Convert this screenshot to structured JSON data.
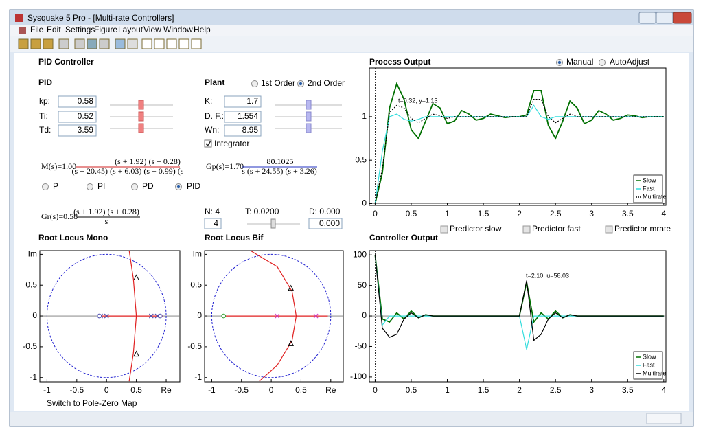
{
  "window": {
    "title": "Sysquake 5 Pro - [Multi-rate Controllers]",
    "menu": [
      "File",
      "Edit",
      "Settings",
      "Figure",
      "Layout",
      "View",
      "Window",
      "Help"
    ]
  },
  "pid_panel": {
    "title": "PID Controller",
    "pid": {
      "title": "PID",
      "fields": [
        {
          "label": "kp:",
          "value": "0.58"
        },
        {
          "label": "Ti:",
          "value": "0.52"
        },
        {
          "label": "Td:",
          "value": "3.59"
        }
      ]
    },
    "plant": {
      "title": "Plant",
      "order_options": [
        "1st Order",
        "2nd Order"
      ],
      "fields": [
        {
          "label": "K:",
          "value": "1.7"
        },
        {
          "label": "D. F.:",
          "value": "1.554"
        },
        {
          "label": "Wn:",
          "value": "8.95"
        }
      ],
      "integrator": "Integrator"
    },
    "m_formula": {
      "lhs": "M(s)=1.00",
      "numerator": "(s + 1.92) (s + 0.28)",
      "denominator": "(s + 20.45) (s + 6.03) (s + 0.99) (s"
    },
    "gp_formula": {
      "lhs": "Gp(s)=1.70",
      "numerator": "80.1025",
      "denominator": "s (s + 24.55) (s + 3.26)"
    },
    "controller_options": [
      "P",
      "PI",
      "PD",
      "PID"
    ],
    "gr_formula": {
      "lhs": "Gr(s)=0.58",
      "numerator": "(s + 1.92) (s + 0.28)",
      "denominator": "s"
    },
    "n_label": "N: 4",
    "n_value": "4",
    "t_label": "T: 0.0200",
    "d_label": "D: 0.000",
    "d_value": "0.000"
  },
  "process_options": [
    "Manual",
    "AutoAdjust"
  ],
  "predictors": [
    "Predictor slow",
    "Predictor fast",
    "Predictor mrate"
  ],
  "switch_link": "Switch to Pole-Zero Map",
  "chart_data": [
    {
      "type": "line",
      "title": "Process Output",
      "annotation": "t=0.32, y=1.13",
      "legend": "lower right",
      "x": [
        0,
        0.1,
        0.2,
        0.3,
        0.4,
        0.5,
        0.6,
        0.7,
        0.8,
        0.9,
        1,
        1.1,
        1.2,
        1.3,
        1.4,
        1.5,
        1.6,
        1.7,
        1.8,
        1.9,
        2,
        2.1,
        2.2,
        2.3,
        2.4,
        2.5,
        2.6,
        2.7,
        2.8,
        2.9,
        3,
        3.1,
        3.2,
        3.3,
        3.4,
        3.5,
        3.6,
        3.7,
        3.8,
        3.9,
        4
      ],
      "series": [
        {
          "name": "Slow",
          "color": "#007000",
          "style": "solid",
          "values": [
            0,
            0.35,
            1.1,
            1.38,
            1.2,
            0.85,
            0.75,
            0.95,
            1.15,
            1.1,
            0.92,
            0.95,
            1.07,
            1.03,
            0.96,
            0.98,
            1.03,
            1.01,
            0.99,
            1,
            1,
            1.02,
            1.3,
            1.3,
            0.9,
            0.75,
            0.95,
            1.18,
            1.1,
            0.92,
            0.96,
            1.07,
            1.03,
            0.96,
            0.98,
            1.02,
            1.01,
            0.99,
            1,
            1,
            1
          ]
        },
        {
          "name": "Fast",
          "color": "#33dddd",
          "style": "solid",
          "values": [
            0,
            0.6,
            1,
            1.03,
            0.97,
            0.95,
            0.97,
            1,
            1,
            1,
            1,
            1,
            1,
            1,
            1,
            1,
            1,
            1,
            1,
            1,
            1,
            1,
            1.13,
            1,
            0.97,
            1,
            1,
            1,
            1,
            1,
            1,
            1,
            1,
            1,
            1,
            1,
            1,
            1,
            1,
            1,
            1
          ]
        },
        {
          "name": "Multirate",
          "color": "#000000",
          "style": "dotted",
          "values": [
            0,
            0.4,
            1.05,
            1.13,
            1.1,
            0.98,
            0.93,
            0.98,
            1.03,
            1.01,
            0.98,
            1,
            1,
            1,
            1,
            1,
            1,
            1,
            1,
            1,
            1,
            1,
            1.2,
            1.2,
            1,
            0.93,
            0.98,
            1.03,
            1,
            1,
            1,
            1,
            1,
            1,
            1,
            1,
            1,
            1,
            1,
            1,
            1
          ]
        }
      ],
      "xlim": [
        -0.08,
        4.03
      ],
      "ylim": [
        -0.02,
        1.56
      ],
      "xticks": [
        0,
        0.5,
        1,
        1.5,
        2,
        2.5,
        3,
        3.5,
        4
      ],
      "yticks": [
        0,
        0.5,
        1
      ]
    },
    {
      "type": "line",
      "title": "Controller Output",
      "annotation": "t=2.10, u=58.03",
      "legend": "lower right",
      "x": [
        0,
        0.1,
        0.2,
        0.3,
        0.4,
        0.5,
        0.6,
        0.7,
        0.8,
        0.9,
        1,
        1.1,
        1.2,
        1.3,
        1.4,
        1.5,
        1.6,
        1.7,
        1.8,
        1.9,
        2,
        2.1,
        2.2,
        2.3,
        2.4,
        2.5,
        2.6,
        2.7,
        2.8,
        2.9,
        3,
        3.1,
        3.2,
        3.3,
        3.4,
        3.5,
        3.6,
        3.7,
        3.8,
        3.9,
        4
      ],
      "series": [
        {
          "name": "Slow",
          "color": "#007000",
          "style": "solid",
          "values": [
            100,
            -5,
            -10,
            5,
            -5,
            8,
            -3,
            2,
            0,
            0,
            0,
            0,
            0,
            0,
            0,
            0,
            0,
            0,
            0,
            0,
            0,
            55,
            -10,
            5,
            -5,
            8,
            -3,
            2,
            0,
            0,
            0,
            0,
            0,
            0,
            0,
            0,
            0,
            0,
            0,
            0,
            0
          ]
        },
        {
          "name": "Fast",
          "color": "#33dddd",
          "style": "solid",
          "values": [
            100,
            -15,
            0,
            0,
            0,
            0,
            0,
            0,
            0,
            0,
            0,
            0,
            0,
            0,
            0,
            0,
            0,
            0,
            0,
            0,
            0,
            -55,
            0,
            0,
            0,
            0,
            0,
            0,
            0,
            0,
            0,
            0,
            0,
            0,
            0,
            0,
            0,
            0,
            0,
            0,
            0
          ]
        },
        {
          "name": "Multirate",
          "color": "#000000",
          "style": "solid",
          "values": [
            100,
            -20,
            -35,
            -30,
            -5,
            5,
            -3,
            2,
            0,
            0,
            0,
            0,
            0,
            0,
            0,
            0,
            0,
            0,
            0,
            0,
            0,
            58,
            -40,
            -30,
            -5,
            5,
            -3,
            2,
            0,
            0,
            0,
            0,
            0,
            0,
            0,
            0,
            0,
            0,
            0,
            0,
            0
          ]
        }
      ],
      "xlim": [
        -0.08,
        4.03
      ],
      "ylim": [
        -108,
        107
      ],
      "xticks": [
        0,
        0.5,
        1,
        1.5,
        2,
        2.5,
        3,
        3.5,
        4
      ],
      "yticks": [
        -100,
        -50,
        0,
        50,
        100
      ]
    },
    {
      "type": "root-locus",
      "title": "Root Locus Mono",
      "unit_circle": true,
      "series": [
        {
          "marker": "line",
          "color": "#e02020",
          "x": [
            0.38,
            0.45,
            0.5,
            0.45,
            0.38
          ],
          "values": [
            1.06,
            0.6,
            0,
            -0.6,
            -1.06
          ]
        },
        {
          "marker": "line",
          "color": "#e02020",
          "x": [
            -0.1,
            0.95
          ],
          "values": [
            0,
            0
          ]
        },
        {
          "marker": "triangle",
          "color": "#000000",
          "x": [
            0.5,
            0.5
          ],
          "values": [
            0.62,
            -0.62
          ]
        },
        {
          "marker": "cross",
          "color": "#5050b0",
          "x": [
            0,
            -0.1,
            0.75,
            0.85
          ],
          "values": [
            0,
            0,
            0,
            0
          ]
        },
        {
          "marker": "circle",
          "color": "#5050b0",
          "x": [
            -0.12,
            0.9
          ],
          "values": [
            0,
            0
          ]
        }
      ],
      "xlim": [
        -1.12,
        1.23
      ],
      "ylim": [
        -1.07,
        1.06
      ],
      "xticks": [
        -1,
        -0.5,
        0,
        0.5,
        {
          "value": 1,
          "label": "Re"
        }
      ],
      "yticks": [
        -1,
        -0.5,
        0,
        0.5,
        {
          "value": 1,
          "label": "Im"
        }
      ]
    },
    {
      "type": "root-locus",
      "title": "Root Locus Bif",
      "unit_circle": true,
      "series": [
        {
          "marker": "line",
          "color": "#e02020",
          "x": [
            -0.35,
            0.1,
            0.35,
            0.42,
            0.35,
            0.1,
            -0.2
          ],
          "values": [
            1.06,
            0.8,
            0.4,
            0,
            -0.4,
            -0.8,
            -1.06
          ]
        },
        {
          "marker": "line",
          "color": "#e02020",
          "x": [
            -0.8,
            0.95
          ],
          "values": [
            0,
            0
          ]
        },
        {
          "marker": "triangle",
          "color": "#000000",
          "x": [
            0.33,
            0.33
          ],
          "values": [
            0.45,
            -0.45
          ]
        },
        {
          "marker": "cross",
          "color": "#d040d0",
          "x": [
            0.1,
            0.75
          ],
          "values": [
            0,
            0
          ]
        },
        {
          "marker": "circle",
          "color": "#30a030",
          "x": [
            -0.8
          ],
          "values": [
            0
          ]
        }
      ],
      "xlim": [
        -1.12,
        1.21
      ],
      "ylim": [
        -1.07,
        1.06
      ],
      "xticks": [
        -1,
        -0.5,
        0,
        0.5,
        {
          "value": 1,
          "label": "Re"
        }
      ],
      "yticks": [
        -1,
        -0.5,
        0,
        0.5,
        {
          "value": 1,
          "label": "Im"
        }
      ]
    }
  ]
}
